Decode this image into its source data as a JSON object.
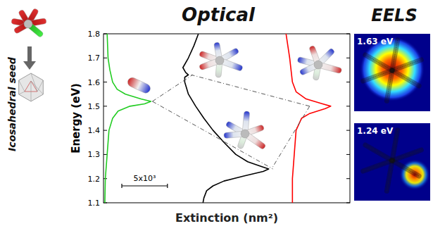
{
  "chart_data": {
    "type": "line",
    "title": "Optical",
    "xlabel": "Extinction (nm²)",
    "ylabel": "Energy (eV)",
    "xlim": [
      0,
      27000
    ],
    "ylim": [
      1.1,
      1.8
    ],
    "yticks": [
      1.1,
      1.2,
      1.3,
      1.4,
      1.5,
      1.6,
      1.7,
      1.8
    ],
    "tick_labels": "y",
    "scale_bar": {
      "value": 5000,
      "label": "5x10³"
    },
    "inset_label": "Icosahedral seed",
    "eels": {
      "title": "EELS",
      "maps": [
        "1.63 eV",
        "1.24 eV"
      ]
    },
    "series": [
      {
        "color": "#22cc22",
        "x": [
          400,
          500,
          700,
          1000,
          1500,
          2400,
          4100,
          5200,
          4500,
          2900,
          1600,
          1000,
          600,
          400,
          200,
          150
        ],
        "values": [
          1.8,
          1.7,
          1.65,
          1.6,
          1.57,
          1.55,
          1.53,
          1.52,
          1.51,
          1.5,
          1.48,
          1.45,
          1.4,
          1.3,
          1.2,
          1.1
        ]
      },
      {
        "color": "#000000",
        "x": [
          10400,
          9900,
          9300,
          8700,
          9000,
          9300,
          8900,
          8900,
          9300,
          10100,
          11000,
          12000,
          13200,
          14500,
          15800,
          17300,
          18100,
          17500,
          15300,
          13200,
          12000,
          11300,
          11000,
          10900
        ],
        "values": [
          1.8,
          1.75,
          1.7,
          1.66,
          1.64,
          1.63,
          1.62,
          1.6,
          1.55,
          1.5,
          1.45,
          1.4,
          1.35,
          1.3,
          1.27,
          1.25,
          1.24,
          1.23,
          1.21,
          1.19,
          1.17,
          1.15,
          1.12,
          1.1
        ]
      },
      {
        "color": "#ff0000",
        "x": [
          20000,
          20400,
          20700,
          21100,
          22200,
          24000,
          24900,
          24300,
          22600,
          21700,
          21100,
          20900,
          20700,
          20700
        ],
        "values": [
          1.8,
          1.7,
          1.6,
          1.56,
          1.53,
          1.51,
          1.5,
          1.49,
          1.47,
          1.45,
          1.4,
          1.3,
          1.2,
          1.1
        ]
      }
    ]
  }
}
